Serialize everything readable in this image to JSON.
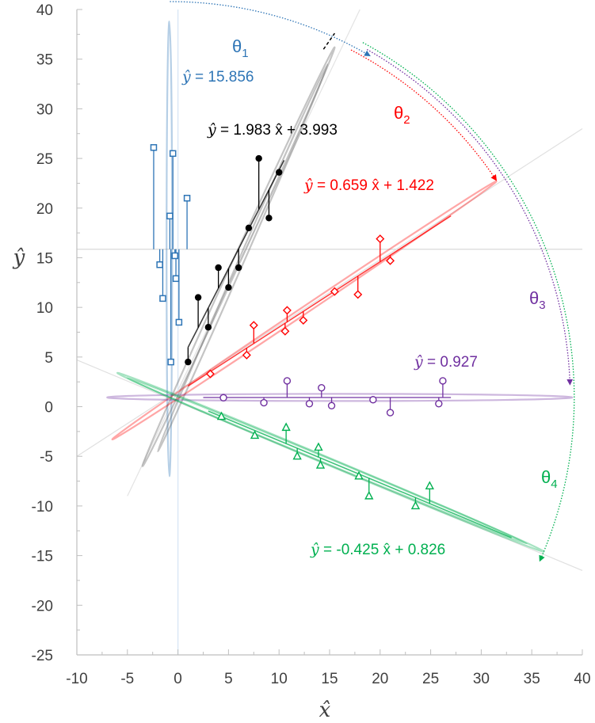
{
  "chart_data": {
    "type": "scatter",
    "xlabel": "x̂",
    "ylabel": "ŷ",
    "xlim": [
      -10,
      40
    ],
    "ylim": [
      -25,
      40
    ],
    "x_ticks": [
      -10,
      -5,
      0,
      5,
      10,
      15,
      20,
      25,
      30,
      35,
      40
    ],
    "y_ticks": [
      -25,
      -20,
      -15,
      -10,
      -5,
      0,
      5,
      10,
      15,
      20,
      25,
      30,
      35,
      40
    ],
    "grid": false,
    "colors": {
      "blue": "#2e75b6",
      "black": "#000000",
      "red": "#ff0000",
      "purple": "#7030a0",
      "green": "#00b050"
    },
    "series": [
      {
        "color": "blue",
        "marker": "square",
        "x": [
          -2.4,
          -1.8,
          -0.8,
          -0.5,
          -0.3,
          -0.2,
          0.1,
          0.9,
          -1.5,
          -0.7
        ],
        "y": [
          26.1,
          14.3,
          19.2,
          25.5,
          15.2,
          12.9,
          8.5,
          21.0,
          10.9,
          4.5
        ],
        "fit": {
          "intercept": 15.856,
          "label_prefix": "ŷ",
          "label_rest": " = 15.856"
        }
      },
      {
        "color": "black",
        "marker": "circle",
        "x": [
          1,
          2,
          3,
          4,
          5,
          6,
          7,
          8,
          9,
          10
        ],
        "y": [
          4.5,
          11,
          8,
          14,
          12,
          14,
          18,
          25,
          19,
          23.6
        ],
        "fit": {
          "slope": 1.983,
          "intercept": 3.993,
          "label_prefix": "ŷ",
          "label_rest": " = 1.983 x̂ + 3.993"
        }
      },
      {
        "color": "red",
        "marker": "diamond",
        "x": [
          3.2,
          6.8,
          7.5,
          10.6,
          10.8,
          12.4,
          15.5,
          17.8,
          20.0,
          21.0
        ],
        "y": [
          3.3,
          5.2,
          8.2,
          7.6,
          9.7,
          8.7,
          11.6,
          11.3,
          16.9,
          14.7
        ],
        "fit": {
          "slope": 0.659,
          "intercept": 1.422,
          "label_prefix": "ŷ",
          "label_rest": " = 0.659 x̂ + 1.422"
        }
      },
      {
        "color": "purple",
        "marker": "circle-open",
        "x": [
          4.5,
          8.5,
          10.8,
          13.0,
          14.2,
          15.2,
          19.3,
          21.0,
          25.8,
          26.2
        ],
        "y": [
          0.9,
          0.4,
          2.6,
          0.3,
          1.9,
          0.1,
          0.7,
          -0.6,
          0.3,
          2.6
        ],
        "fit": {
          "intercept": 0.927,
          "label_prefix": "ŷ",
          "label_rest": " = 0.927"
        }
      },
      {
        "color": "green",
        "marker": "triangle",
        "x": [
          4.3,
          7.6,
          10.7,
          11.8,
          13.9,
          14.1,
          17.9,
          18.9,
          23.5,
          24.9
        ],
        "y": [
          -1.0,
          -2.9,
          -2.1,
          -5.0,
          -4.1,
          -5.9,
          -7.0,
          -9.0,
          -10.0,
          -8.0
        ],
        "fit": {
          "slope": -0.425,
          "intercept": 0.826,
          "label_prefix": "ŷ",
          "label_rest": " = -0.425 x̂ + 0.826"
        }
      }
    ],
    "angle_labels": [
      {
        "sym": "θ",
        "sub": "1",
        "color": "blue"
      },
      {
        "sym": "θ",
        "sub": "2",
        "color": "red"
      },
      {
        "sym": "θ",
        "sub": "3",
        "color": "purple"
      },
      {
        "sym": "θ",
        "sub": "4",
        "color": "green"
      }
    ]
  }
}
